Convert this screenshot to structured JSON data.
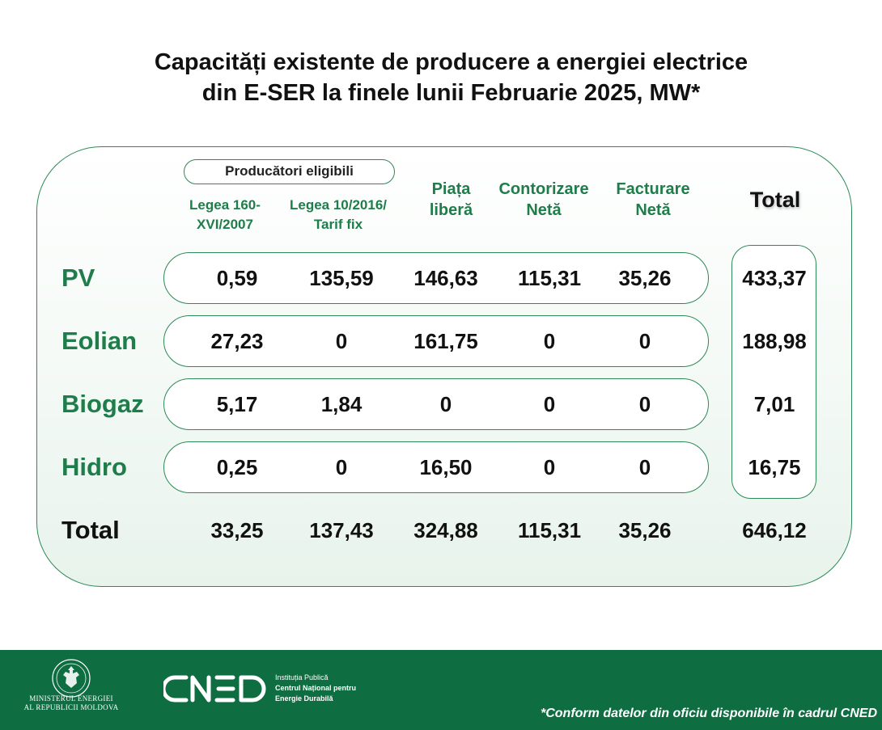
{
  "title": {
    "line1": "Capacități existente de producere a energiei electrice",
    "line2": "din E-SER la finele lunii Februarie 2025, MW*"
  },
  "group_label": "Producători eligibili",
  "columns": [
    {
      "line1": "Legea 160-",
      "line2": "XVI/2007"
    },
    {
      "line1": "Legea 10/2016/",
      "line2": "Tarif fix"
    },
    {
      "line1": "Piața",
      "line2": "liberă"
    },
    {
      "line1": "Contorizare",
      "line2": "Netă"
    },
    {
      "line1": "Facturare",
      "line2": "Netă"
    }
  ],
  "total_header": "Total",
  "rows": [
    {
      "label": "PV",
      "values": [
        "0,59",
        "135,59",
        "146,63",
        "115,31",
        "35,26"
      ],
      "total": "433,37"
    },
    {
      "label": "Eolian",
      "values": [
        "27,23",
        "0",
        "161,75",
        "0",
        "0"
      ],
      "total": "188,98"
    },
    {
      "label": "Biogaz",
      "values": [
        "5,17",
        "1,84",
        "0",
        "0",
        "0"
      ],
      "total": "7,01"
    },
    {
      "label": "Hidro",
      "values": [
        "0,25",
        "0",
        "16,50",
        "0",
        "0"
      ],
      "total": "16,75"
    }
  ],
  "total_row": {
    "label": "Total",
    "values": [
      "33,25",
      "137,43",
      "324,88",
      "115,31",
      "35,26"
    ],
    "total": "646,12"
  },
  "footer": {
    "ministry_line1": "MINISTERUL ENERGIEI",
    "ministry_line2": "AL REPUBLICII MOLDOVA",
    "cned_logo": "CNED",
    "cned_line1": "Instituția Publică",
    "cned_line2": "Centrul Național pentru",
    "cned_line3": "Energie Durabilă",
    "note": "*Conform datelor din oficiu disponibile în cadrul CNED"
  },
  "colors": {
    "green": "#1e7d4a",
    "border": "#2c8a55",
    "footer": "#0f6d42"
  }
}
